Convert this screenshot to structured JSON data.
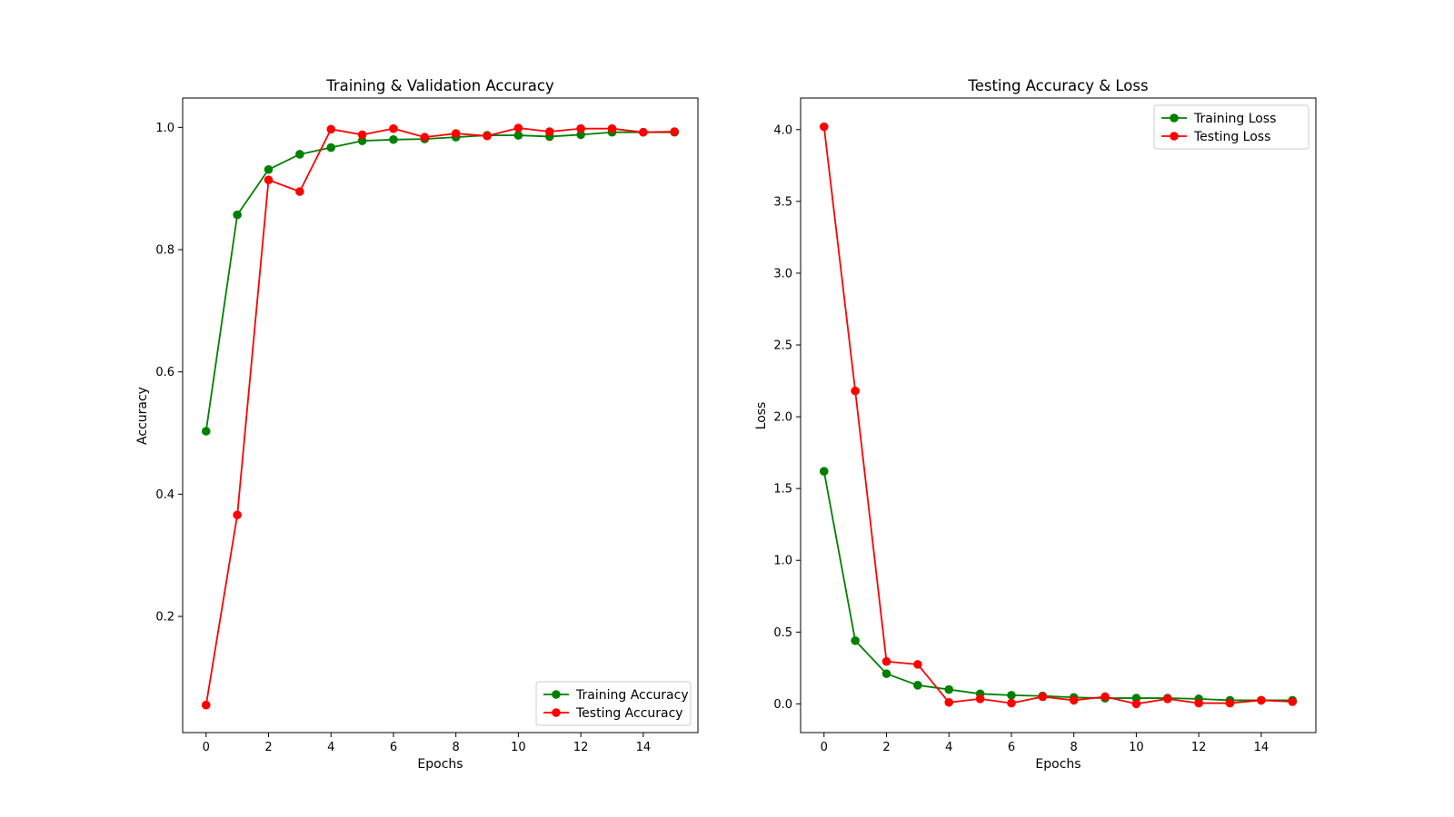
{
  "chart_data": [
    {
      "type": "line",
      "title": "Training & Validation Accuracy",
      "xlabel": "Epochs",
      "ylabel": "Accuracy",
      "xlim": [
        -0.75,
        15.75
      ],
      "ylim": [
        0.01,
        1.048
      ],
      "xticks": [
        0,
        2,
        4,
        6,
        8,
        10,
        12,
        14
      ],
      "yticks": [
        0.2,
        0.4,
        0.6,
        0.8,
        1.0
      ],
      "ytick_labels": [
        "0.2",
        "0.4",
        "0.6",
        "0.8",
        "1.0"
      ],
      "x": [
        0,
        1,
        2,
        3,
        4,
        5,
        6,
        7,
        8,
        9,
        10,
        11,
        12,
        13,
        14,
        15
      ],
      "legend_position": "bottom-right",
      "grid": false,
      "series": [
        {
          "name": "Training Accuracy",
          "color": "#008000",
          "values": [
            0.503,
            0.857,
            0.931,
            0.956,
            0.967,
            0.978,
            0.98,
            0.981,
            0.984,
            0.987,
            0.987,
            0.985,
            0.988,
            0.992,
            0.992,
            0.992
          ]
        },
        {
          "name": "Testing Accuracy",
          "color": "#ff0000",
          "values": [
            0.055,
            0.366,
            0.914,
            0.895,
            0.997,
            0.988,
            0.998,
            0.984,
            0.99,
            0.986,
            0.999,
            0.993,
            0.998,
            0.998,
            0.992,
            0.993
          ]
        }
      ]
    },
    {
      "type": "line",
      "title": "Testing Accuracy & Loss",
      "xlabel": "Epochs",
      "ylabel": "Loss",
      "xlim": [
        -0.75,
        15.75
      ],
      "ylim": [
        -0.2,
        4.22
      ],
      "xticks": [
        0,
        2,
        4,
        6,
        8,
        10,
        12,
        14
      ],
      "yticks": [
        0.0,
        0.5,
        1.0,
        1.5,
        2.0,
        2.5,
        3.0,
        3.5,
        4.0
      ],
      "ytick_labels": [
        "0.0",
        "0.5",
        "1.0",
        "1.5",
        "2.0",
        "2.5",
        "3.0",
        "3.5",
        "4.0"
      ],
      "x": [
        0,
        1,
        2,
        3,
        4,
        5,
        6,
        7,
        8,
        9,
        10,
        11,
        12,
        13,
        14,
        15
      ],
      "legend_position": "top-right",
      "grid": false,
      "series": [
        {
          "name": "Training Loss",
          "color": "#008000",
          "values": [
            1.62,
            0.44,
            0.21,
            0.13,
            0.1,
            0.07,
            0.06,
            0.055,
            0.045,
            0.04,
            0.04,
            0.04,
            0.035,
            0.025,
            0.025,
            0.025
          ]
        },
        {
          "name": "Testing Loss",
          "color": "#ff0000",
          "values": [
            4.02,
            2.18,
            0.295,
            0.275,
            0.01,
            0.035,
            0.005,
            0.05,
            0.025,
            0.05,
            0.0,
            0.035,
            0.005,
            0.005,
            0.025,
            0.015
          ]
        }
      ]
    }
  ]
}
